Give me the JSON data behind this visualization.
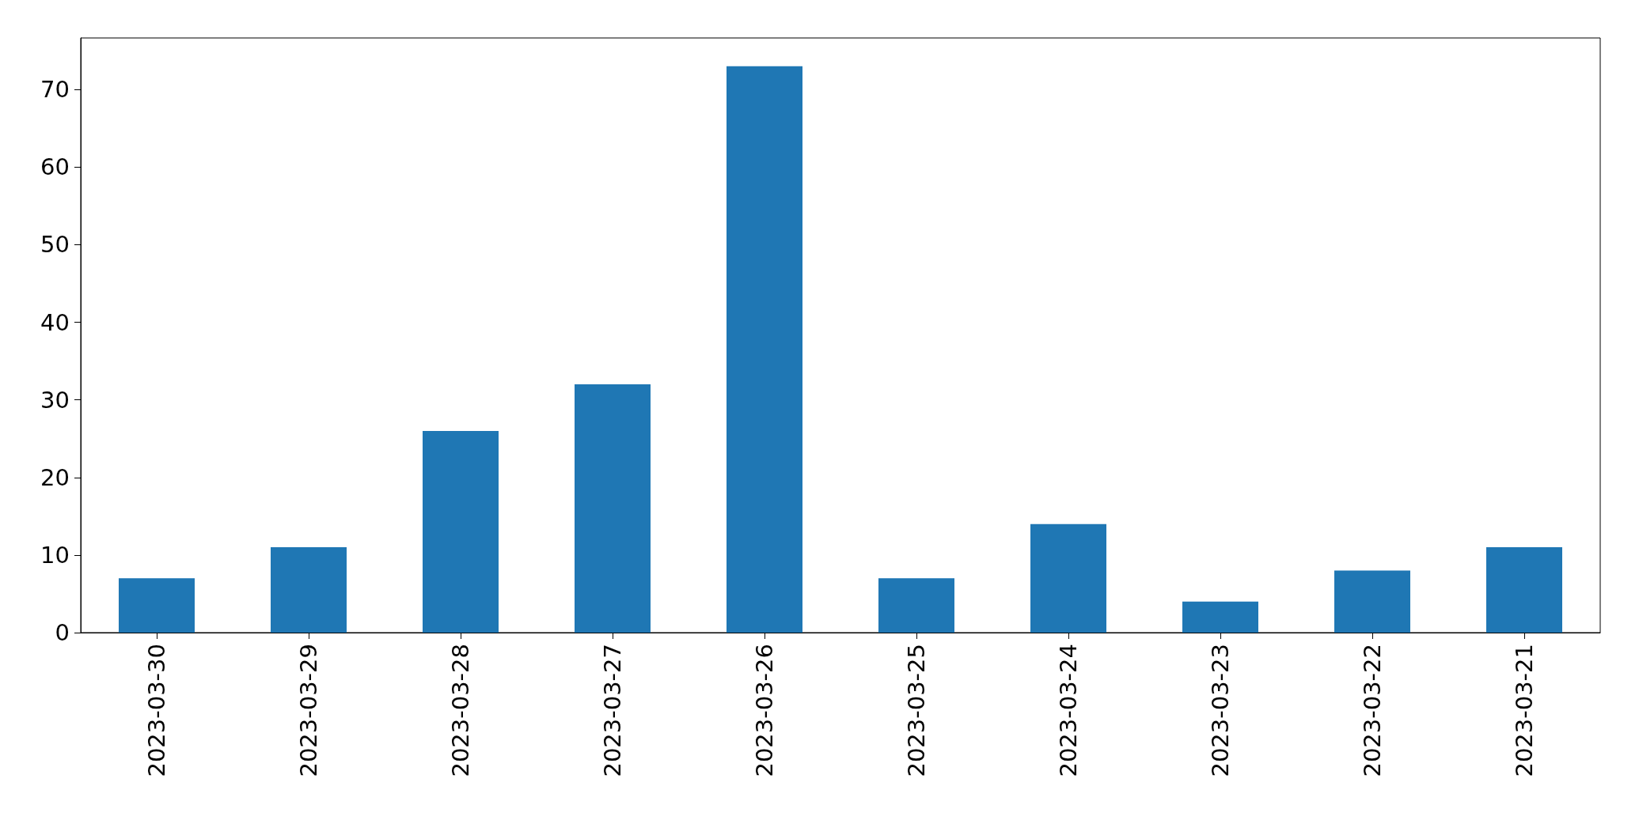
{
  "chart_data": {
    "type": "bar",
    "categories": [
      "2023-03-30",
      "2023-03-29",
      "2023-03-28",
      "2023-03-27",
      "2023-03-26",
      "2023-03-25",
      "2023-03-24",
      "2023-03-23",
      "2023-03-22",
      "2023-03-21"
    ],
    "values": [
      7,
      11,
      26,
      32,
      73,
      7,
      14,
      4,
      8,
      11
    ],
    "color": "#1f77b4",
    "ylim": [
      0,
      76.65
    ],
    "yticks": [
      0,
      10,
      20,
      30,
      40,
      50,
      60,
      70
    ],
    "grid": false
  }
}
